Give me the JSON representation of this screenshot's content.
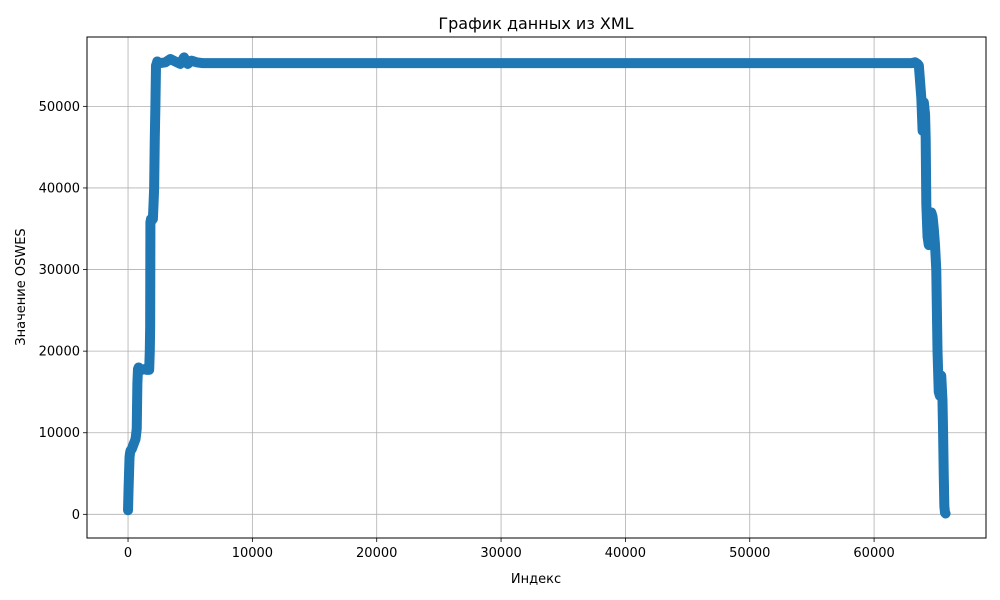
{
  "chart_data": {
    "type": "line",
    "title": "График данных из XML",
    "xlabel": "Индекс",
    "ylabel": "Значение OSWES",
    "xlim": [
      -3300,
      69000
    ],
    "ylim": [
      -2900,
      58500
    ],
    "grid": true,
    "xticks": [
      0,
      10000,
      20000,
      30000,
      40000,
      50000,
      60000
    ],
    "yticks": [
      0,
      10000,
      20000,
      30000,
      40000,
      50000
    ],
    "color": "#1f77b4",
    "series": [
      {
        "x": [
          0,
          40,
          80,
          120,
          160,
          200,
          300,
          400,
          500,
          600,
          650,
          700,
          750,
          800,
          850,
          900,
          950,
          1000,
          1100,
          1300,
          1500,
          1700,
          1750,
          1780,
          1800,
          1850,
          1900,
          1950,
          2000,
          2050,
          2100,
          2150,
          2200,
          2250,
          2300,
          2350,
          2400,
          2600,
          3000,
          3400,
          3800,
          4200,
          4500,
          4800,
          5100,
          5500,
          6000,
          7000,
          10000,
          20000,
          30000,
          40000,
          50000,
          60000,
          62000,
          63000,
          63300,
          63500,
          63600,
          63700,
          63800,
          63900,
          64000,
          64100,
          64150,
          64200,
          64300,
          64400,
          64500,
          64600,
          64700,
          64800,
          64900,
          65000,
          65050,
          65100,
          65200,
          65300,
          65400,
          65500,
          65550,
          65600,
          65650,
          65700,
          65750
        ],
        "y": [
          500,
          3000,
          5000,
          7000,
          7500,
          7800,
          8000,
          8400,
          8800,
          9200,
          9800,
          10500,
          16000,
          17800,
          18000,
          17800,
          17600,
          17800,
          17700,
          17800,
          17700,
          17700,
          20000,
          23000,
          35800,
          36200,
          36000,
          36400,
          36200,
          38000,
          40000,
          46000,
          50000,
          55000,
          55200,
          55500,
          55300,
          55300,
          55400,
          55800,
          55500,
          55200,
          56000,
          55200,
          55600,
          55400,
          55300,
          55300,
          55300,
          55300,
          55300,
          55300,
          55300,
          55300,
          55300,
          55300,
          55400,
          55200,
          55000,
          53000,
          51000,
          47000,
          50500,
          49000,
          46000,
          38000,
          34000,
          33000,
          36000,
          37000,
          36500,
          35000,
          33000,
          30000,
          25000,
          20000,
          15000,
          14500,
          17000,
          14000,
          10000,
          5000,
          1000,
          200,
          100
        ]
      }
    ]
  }
}
